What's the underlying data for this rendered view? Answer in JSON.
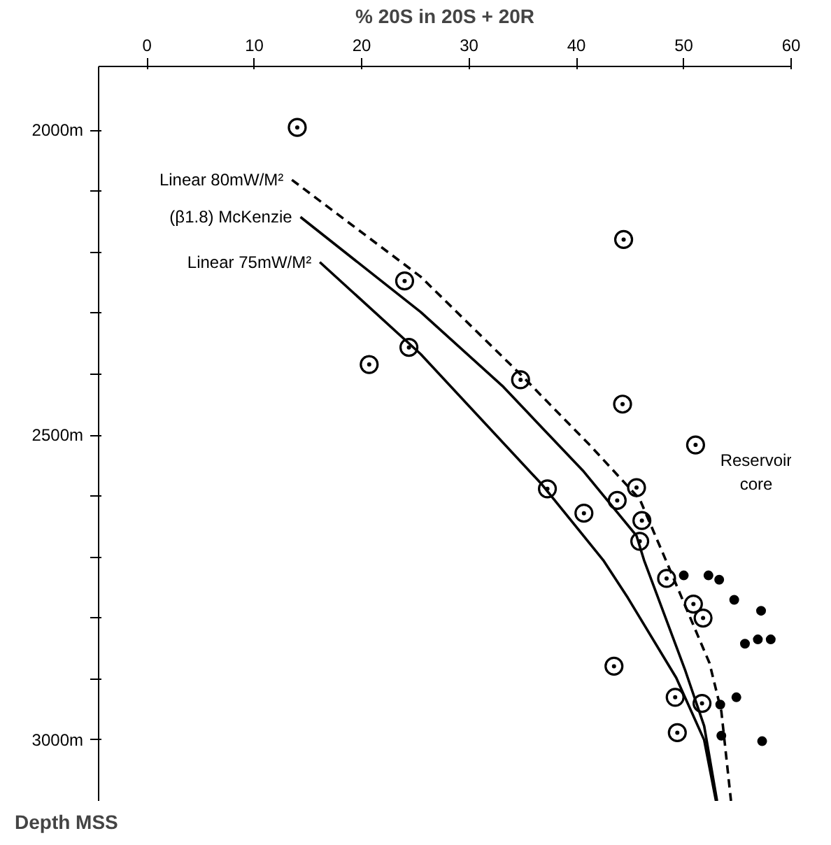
{
  "chart_data": {
    "type": "scatter",
    "xlabel": "% 20S in 20S + 20R",
    "ylabel": "Depth MSS",
    "xlim": [
      -4.5,
      60
    ],
    "xticks": [
      0,
      10,
      20,
      30,
      40,
      50,
      60
    ],
    "ylim": [
      3100,
      1895
    ],
    "yticks": [
      {
        "value": 2000,
        "label": "2000m"
      },
      {
        "value": 2100,
        "label": null
      },
      {
        "value": 2200,
        "label": null
      },
      {
        "value": 2300,
        "label": null
      },
      {
        "value": 2400,
        "label": null
      },
      {
        "value": 2500,
        "label": "2500m"
      },
      {
        "value": 2600,
        "label": null
      },
      {
        "value": 2700,
        "label": null
      },
      {
        "value": 2800,
        "label": null
      },
      {
        "value": 2900,
        "label": null
      },
      {
        "value": 3000,
        "label": "3000m"
      }
    ],
    "grid": false,
    "annotations": [
      "Reservoir\ncore"
    ],
    "series": [
      {
        "marker": "circle_dot",
        "color": "#000000",
        "x": [
          14,
          24,
          24.4,
          20.7,
          44.4,
          34.8,
          44.3,
          51.1,
          37.3,
          40.7,
          43.8,
          45.6,
          46.1,
          45.9,
          48.4,
          50.9,
          51.8,
          43.5,
          49.2,
          51.7,
          49.4
        ],
        "values": [
          1995,
          2247,
          2356,
          2384,
          2179,
          2409,
          2449,
          2516,
          2588,
          2628,
          2607,
          2586,
          2640,
          2674,
          2735,
          2777,
          2800,
          2879,
          2930,
          2940,
          2988
        ]
      },
      {
        "marker": "circle",
        "color": "#000000",
        "x": [
          50,
          52.3,
          53.3,
          54.7,
          57.2,
          55.7,
          56.9,
          58.1,
          54.9,
          53.4,
          53.5,
          57.3
        ],
        "values": [
          2730,
          2730,
          2737,
          2770,
          2788,
          2842,
          2835,
          2835,
          2930,
          2942,
          2993,
          3002
        ]
      },
      {
        "type": "line",
        "name": "Linear 80mW/M²",
        "line_style": "dashed",
        "color": "#000000",
        "x": [
          13.5,
          25.5,
          34.9,
          41.4,
          45.9,
          48.5,
          52.4,
          53.5,
          54.4
        ],
        "values": [
          2081,
          2240,
          2402,
          2519,
          2605,
          2712,
          2874,
          2953,
          3100
        ]
      },
      {
        "type": "line",
        "name": "(β1.8) McKenzie",
        "line_style": "solid",
        "color": "#000000",
        "x": [
          14.3,
          25.5,
          33.1,
          40.6,
          45.6,
          46.3,
          50.1,
          51.9,
          53.1
        ],
        "values": [
          2142,
          2298,
          2419,
          2558,
          2665,
          2705,
          2884,
          2977,
          3100
        ]
      },
      {
        "type": "line",
        "name": "Linear 75mW/M²",
        "line_style": "solid",
        "color": "#000000",
        "x": [
          16.1,
          25.5,
          36.8,
          42.5,
          44.8,
          49.3,
          51.9,
          53
        ],
        "values": [
          2216,
          2367,
          2581,
          2705,
          2767,
          2898,
          3000,
          3100
        ]
      }
    ]
  }
}
